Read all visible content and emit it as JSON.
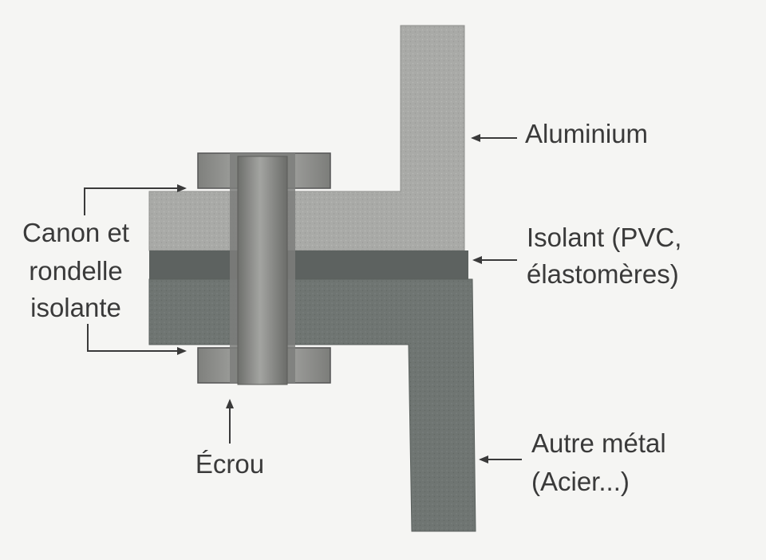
{
  "labels": {
    "aluminium": "Aluminium",
    "isolant_line1": "Isolant (PVC,",
    "isolant_line2": "élastomères)",
    "autre_line1": "Autre métal",
    "autre_line2": "(Acier...)",
    "canon_line1": "Canon et",
    "canon_line2": "rondelle",
    "canon_line3": "isolante",
    "ecrou": "Écrou"
  },
  "colors": {
    "background": "#f5f5f3",
    "aluminium": "#a9aaa7",
    "aluminium_dark": "#8f908d",
    "insulator": "#5d6260",
    "other_metal": "#6f7572",
    "bolt": "#8c8d8a",
    "washer": "#9b9c99",
    "text": "#3a3a3a",
    "arrow": "#3a3a3a"
  }
}
